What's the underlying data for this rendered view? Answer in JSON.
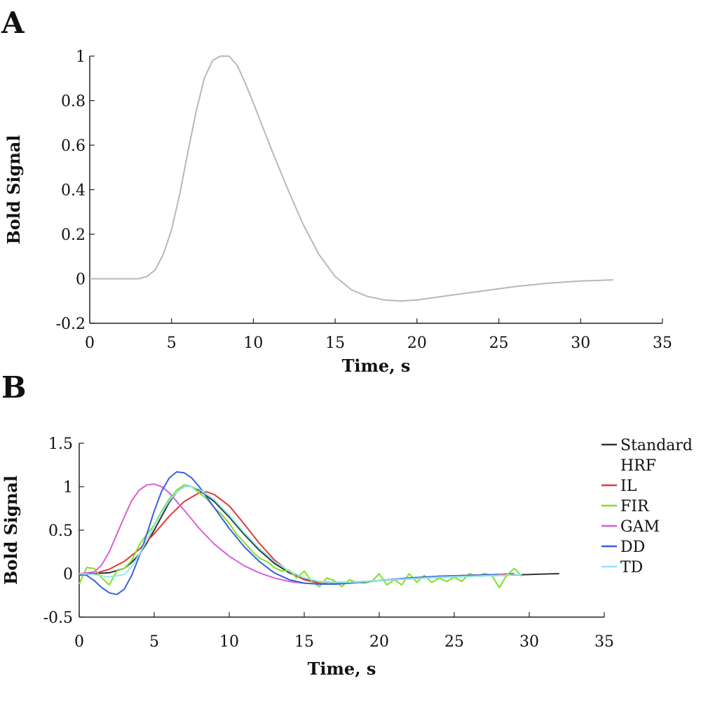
{
  "panels": {
    "a_letter": "A",
    "b_letter": "B"
  },
  "chart_data": [
    {
      "type": "line",
      "panel": "A",
      "xlabel": "Time, s",
      "ylabel": "Bold Signal",
      "xlim": [
        0,
        35
      ],
      "ylim": [
        -0.2,
        1
      ],
      "xticks": [
        "0",
        "5",
        "10",
        "15",
        "20",
        "25",
        "30",
        "35"
      ],
      "yticks": [
        "-0.2",
        "0",
        "0.2",
        "0.4",
        "0.6",
        "0.8",
        "1"
      ],
      "series": [
        {
          "color": "#b8b8b8",
          "x": [
            0,
            1,
            2,
            3,
            3.5,
            4,
            4.5,
            5,
            5.5,
            6,
            6.5,
            7,
            7.5,
            8,
            8.5,
            9,
            9.5,
            10,
            11,
            12,
            13,
            14,
            15,
            16,
            17,
            18,
            19,
            20,
            21,
            22,
            24,
            26,
            28,
            30,
            32
          ],
          "y": [
            0,
            0,
            0,
            0,
            0.01,
            0.04,
            0.11,
            0.22,
            0.38,
            0.57,
            0.75,
            0.9,
            0.98,
            1.0,
            1.0,
            0.96,
            0.88,
            0.79,
            0.6,
            0.42,
            0.25,
            0.11,
            0.01,
            -0.05,
            -0.08,
            -0.095,
            -0.1,
            -0.095,
            -0.085,
            -0.075,
            -0.055,
            -0.035,
            -0.02,
            -0.01,
            -0.005
          ]
        }
      ]
    },
    {
      "type": "line",
      "panel": "B",
      "xlabel": "Time, s",
      "ylabel": "Bold Signal",
      "xlim": [
        0,
        35
      ],
      "ylim": [
        -0.5,
        1.5
      ],
      "xticks": [
        "0",
        "5",
        "10",
        "15",
        "20",
        "25",
        "30",
        "35"
      ],
      "yticks": [
        "-0.5",
        "0",
        "0.5",
        "1",
        "1.5"
      ],
      "legend": "right",
      "series": [
        {
          "name": "Standard HRF",
          "color": "#333333",
          "x": [
            0,
            1,
            2,
            3,
            3.5,
            4,
            4.5,
            5,
            5.5,
            6,
            6.5,
            7,
            7.5,
            8,
            9,
            10,
            11,
            12,
            13,
            14,
            15,
            16,
            17,
            18,
            20,
            22,
            24,
            26,
            28,
            30,
            32
          ],
          "y": [
            0,
            0,
            0.01,
            0.06,
            0.13,
            0.22,
            0.35,
            0.5,
            0.66,
            0.82,
            0.94,
            1.0,
            1.0,
            0.96,
            0.83,
            0.65,
            0.45,
            0.27,
            0.12,
            0.01,
            -0.06,
            -0.09,
            -0.1,
            -0.1,
            -0.08,
            -0.06,
            -0.04,
            -0.03,
            -0.02,
            -0.01,
            0
          ]
        },
        {
          "name": "IL",
          "color": "#e03a3a",
          "x": [
            0,
            1,
            2,
            3,
            4,
            5,
            6,
            7,
            8,
            8.5,
            9,
            10,
            11,
            12,
            13,
            14,
            15,
            16,
            17,
            18,
            20,
            22,
            24,
            26,
            28,
            29
          ],
          "y": [
            -0.02,
            0,
            0.05,
            0.14,
            0.28,
            0.46,
            0.66,
            0.83,
            0.93,
            0.94,
            0.91,
            0.78,
            0.57,
            0.35,
            0.16,
            0.02,
            -0.07,
            -0.11,
            -0.12,
            -0.11,
            -0.08,
            -0.05,
            -0.03,
            -0.02,
            -0.01,
            0
          ]
        },
        {
          "name": "FIR",
          "color": "#7fe02a",
          "x": [
            0,
            0.5,
            1,
            1.5,
            2,
            2.5,
            3,
            3.5,
            4,
            4.5,
            5,
            5.5,
            6,
            6.5,
            7,
            7.5,
            8,
            8.5,
            9,
            9.5,
            10,
            10.5,
            11,
            11.5,
            12,
            12.5,
            13,
            13.5,
            14,
            14.5,
            15,
            15.5,
            16,
            16.5,
            17,
            17.5,
            18,
            18.5,
            19,
            19.5,
            20,
            20.5,
            21,
            21.5,
            22,
            22.5,
            23,
            23.5,
            24,
            24.5,
            25,
            25.5,
            26,
            26.5,
            27,
            27.5,
            28,
            28.5,
            29,
            29.5
          ],
          "y": [
            -0.12,
            0.07,
            0.06,
            -0.05,
            -0.13,
            0.03,
            0.06,
            0.15,
            0.33,
            0.45,
            0.56,
            0.72,
            0.86,
            0.96,
            1.02,
            1.0,
            0.93,
            0.86,
            0.76,
            0.68,
            0.58,
            0.45,
            0.36,
            0.26,
            0.18,
            0.14,
            0.07,
            0.03,
            0.04,
            -0.05,
            0.03,
            -0.09,
            -0.15,
            -0.05,
            -0.08,
            -0.15,
            -0.07,
            -0.1,
            -0.11,
            -0.09,
            0.0,
            -0.13,
            -0.07,
            -0.13,
            0.0,
            -0.1,
            -0.02,
            -0.1,
            -0.05,
            -0.09,
            -0.04,
            -0.09,
            0.0,
            -0.03,
            0.0,
            -0.02,
            -0.16,
            -0.02,
            0.06,
            -0.03
          ]
        },
        {
          "name": "GAM",
          "color": "#d860d8",
          "x": [
            0,
            1,
            1.5,
            2,
            2.5,
            3,
            3.5,
            4,
            4.5,
            5,
            5.5,
            6,
            7,
            8,
            9,
            10,
            11,
            12,
            13,
            14,
            15,
            16,
            17,
            18,
            20,
            22,
            24,
            26,
            28
          ],
          "y": [
            0,
            0.02,
            0.1,
            0.25,
            0.45,
            0.65,
            0.84,
            0.96,
            1.02,
            1.03,
            1.0,
            0.93,
            0.73,
            0.52,
            0.34,
            0.2,
            0.09,
            0.01,
            -0.05,
            -0.09,
            -0.11,
            -0.12,
            -0.12,
            -0.11,
            -0.08,
            -0.05,
            -0.03,
            -0.02,
            -0.01
          ]
        },
        {
          "name": "DD",
          "color": "#3a5fe0",
          "x": [
            0,
            0.5,
            1,
            1.5,
            2,
            2.5,
            3,
            3.5,
            4,
            4.5,
            5,
            5.5,
            6,
            6.5,
            7,
            7.5,
            8,
            9,
            10,
            11,
            12,
            13,
            14,
            15,
            16,
            17,
            18,
            20,
            22,
            24,
            26,
            28
          ],
          "y": [
            0,
            -0.02,
            -0.08,
            -0.16,
            -0.22,
            -0.24,
            -0.18,
            -0.02,
            0.2,
            0.45,
            0.72,
            0.95,
            1.1,
            1.17,
            1.16,
            1.1,
            1.0,
            0.76,
            0.52,
            0.31,
            0.14,
            0.01,
            -0.07,
            -0.11,
            -0.12,
            -0.12,
            -0.11,
            -0.08,
            -0.05,
            -0.03,
            -0.02,
            -0.01
          ]
        },
        {
          "name": "TD",
          "color": "#8ee8ee",
          "x": [
            0,
            1,
            2,
            3,
            3.5,
            4,
            4.5,
            5,
            5.5,
            6,
            6.5,
            7,
            7.5,
            8,
            9,
            10,
            11,
            12,
            13,
            14,
            15,
            16,
            17,
            18,
            20,
            22,
            24,
            26,
            28,
            29.5
          ],
          "y": [
            0,
            -0.01,
            -0.04,
            -0.01,
            0.08,
            0.22,
            0.38,
            0.55,
            0.7,
            0.84,
            0.94,
            1.0,
            1.0,
            0.97,
            0.85,
            0.67,
            0.47,
            0.29,
            0.14,
            0.03,
            -0.05,
            -0.09,
            -0.1,
            -0.1,
            -0.08,
            -0.06,
            -0.04,
            -0.03,
            -0.02,
            -0.01
          ]
        }
      ]
    }
  ]
}
